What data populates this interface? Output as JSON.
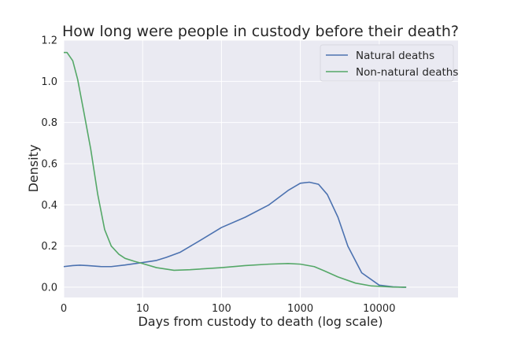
{
  "chart_data": {
    "type": "line",
    "title": "How long were people in custody before their death?",
    "xlabel": "Days from custody to death (log scale)",
    "ylabel": "Density",
    "x_scale": "log",
    "x_ticks": [
      "0",
      "10",
      "100",
      "1000",
      "10000"
    ],
    "y_ticks": [
      "0.0",
      "0.2",
      "0.4",
      "0.6",
      "0.8",
      "1.0",
      "1.2"
    ],
    "xlim": [
      1,
      100000
    ],
    "ylim": [
      -0.05,
      1.2
    ],
    "grid": true,
    "legend_position": "top-right",
    "series": [
      {
        "name": "Natural deaths",
        "color": "#4c72b0",
        "x": [
          1,
          1.3,
          1.6,
          2,
          3,
          4,
          6,
          10,
          15,
          20,
          30,
          50,
          100,
          200,
          400,
          700,
          1000,
          1300,
          1700,
          2200,
          3000,
          4000,
          6000,
          10000,
          15000,
          20000,
          22000
        ],
        "y": [
          0.1,
          0.105,
          0.107,
          0.105,
          0.1,
          0.1,
          0.108,
          0.12,
          0.13,
          0.145,
          0.17,
          0.22,
          0.29,
          0.34,
          0.4,
          0.47,
          0.505,
          0.51,
          0.5,
          0.45,
          0.34,
          0.2,
          0.07,
          0.01,
          0.002,
          0.0,
          0.0
        ]
      },
      {
        "name": "Non-natural deaths",
        "color": "#55a868",
        "x": [
          1,
          1.1,
          1.3,
          1.5,
          1.8,
          2.2,
          2.7,
          3.3,
          4,
          5,
          6,
          8,
          10,
          15,
          25,
          40,
          100,
          200,
          400,
          700,
          1000,
          1500,
          2000,
          3000,
          5000,
          8000,
          15000,
          22000
        ],
        "y": [
          1.14,
          1.14,
          1.1,
          1.01,
          0.85,
          0.67,
          0.45,
          0.28,
          0.2,
          0.16,
          0.14,
          0.125,
          0.115,
          0.095,
          0.082,
          0.085,
          0.095,
          0.105,
          0.112,
          0.115,
          0.112,
          0.1,
          0.08,
          0.05,
          0.02,
          0.006,
          0.001,
          0.0
        ]
      }
    ]
  }
}
